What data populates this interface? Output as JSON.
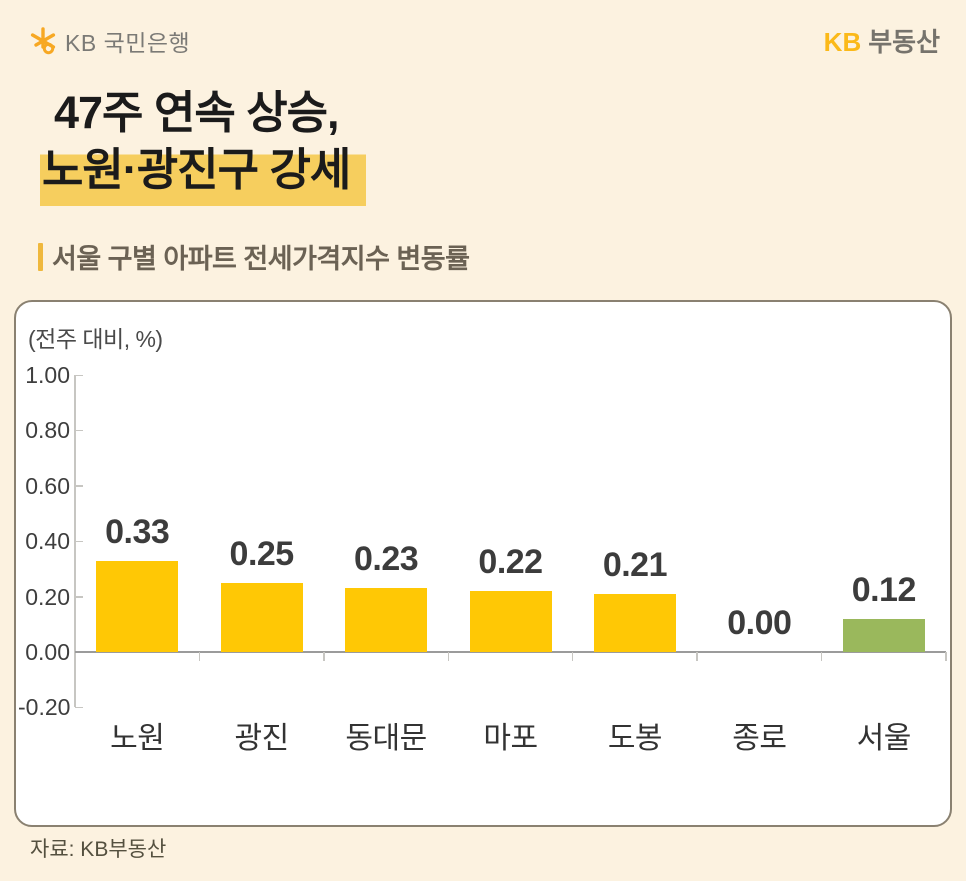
{
  "header": {
    "logo_text": "KB 국민은행",
    "brand_kb": "KB",
    "brand_suffix": "부동산"
  },
  "title": {
    "line1": "47주 연속 상승,",
    "line2": "노원·광진구 강세"
  },
  "subtitle": "서울 구별 아파트 전세가격지수 변동률",
  "footer_source": "자료: KB부동산",
  "colors": {
    "page_background": "#FCF2E0",
    "card_border": "#8A8171",
    "bar_yellow": "#FFC805",
    "bar_green": "#9AB85C",
    "title_highlight": "#F6CE5E",
    "accent_orange": "#EFB83D",
    "logo_orange": "#F7A823"
  },
  "chart_data": {
    "type": "bar",
    "title": "서울 구별 아파트 전세가격지수 변동률",
    "unit_label": "(전주 대비, %)",
    "xlabel": "",
    "ylabel": "(전주 대비, %)",
    "categories": [
      "노원",
      "광진",
      "동대문",
      "마포",
      "도봉",
      "종로",
      "서울"
    ],
    "values": [
      0.33,
      0.25,
      0.23,
      0.22,
      0.21,
      0.0,
      0.12
    ],
    "value_labels": [
      "0.33",
      "0.25",
      "0.23",
      "0.22",
      "0.21",
      "0.00",
      "0.12"
    ],
    "bar_colors": [
      "#FFC805",
      "#FFC805",
      "#FFC805",
      "#FFC805",
      "#FFC805",
      "#FFC805",
      "#9AB85C"
    ],
    "y_ticks": [
      "1.00",
      "0.80",
      "0.60",
      "0.40",
      "0.20",
      "0.00",
      "-0.20"
    ],
    "ylim": [
      -0.2,
      1.0
    ],
    "grid": false,
    "legend": null
  }
}
